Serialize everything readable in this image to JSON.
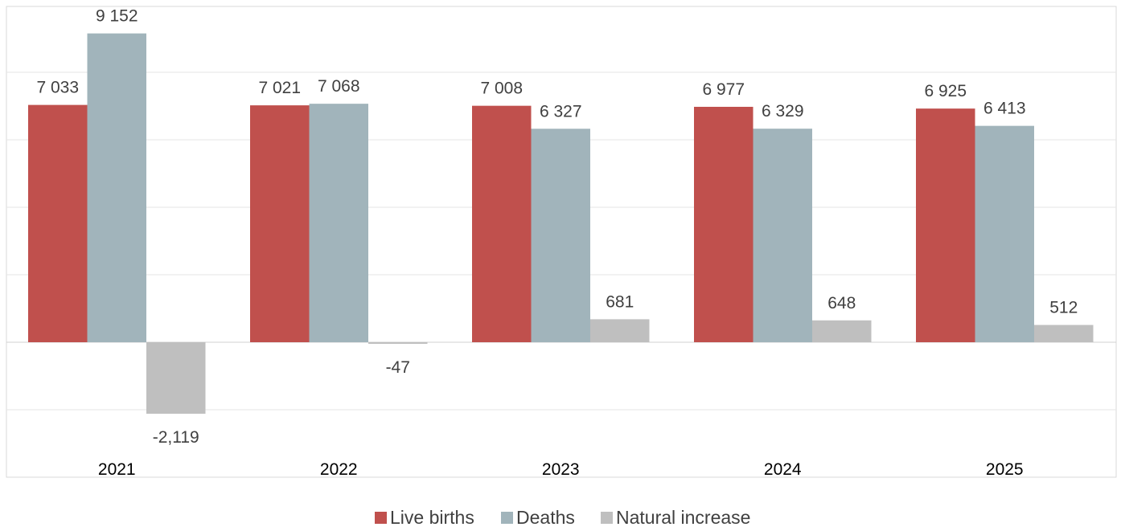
{
  "chart_data": {
    "type": "bar",
    "categories": [
      "2021",
      "2022",
      "2023",
      "2024",
      "2025"
    ],
    "series": [
      {
        "name": "Live births",
        "color": "#c0504d",
        "values": [
          7033,
          7021,
          7008,
          6977,
          6925
        ],
        "labels": [
          "7 033",
          "7 021",
          "7 008",
          "6 977",
          "6 925"
        ]
      },
      {
        "name": "Deaths",
        "color": "#a1b4bb",
        "values": [
          9152,
          7068,
          6327,
          6329,
          6413
        ],
        "labels": [
          "9 152",
          "7 068",
          "6 327",
          "6 329",
          "6 413"
        ]
      },
      {
        "name": "Natural increase",
        "color": "#bfbfbf",
        "values": [
          -2119,
          -47,
          681,
          648,
          512
        ],
        "labels": [
          "-2,119",
          "-47",
          "681",
          "648",
          "512"
        ]
      }
    ],
    "ylim": [
      -4000,
      10000
    ],
    "grid": true,
    "legend_position": "bottom"
  }
}
